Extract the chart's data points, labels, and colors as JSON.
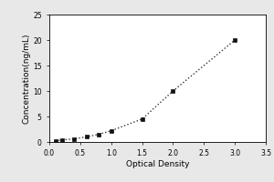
{
  "xlabel": "Optical Density",
  "ylabel": "Concentration(ng/mL)",
  "x_data": [
    0.1,
    0.2,
    0.4,
    0.6,
    0.8,
    1.0,
    1.5,
    2.0,
    3.0
  ],
  "y_data": [
    0.2,
    0.4,
    0.6,
    1.0,
    1.5,
    2.2,
    4.5,
    10.0,
    20.0
  ],
  "xlim": [
    0,
    3.5
  ],
  "ylim": [
    0,
    25
  ],
  "xticks": [
    0,
    0.5,
    1.0,
    1.5,
    2.0,
    2.5,
    3.0,
    3.5
  ],
  "yticks": [
    0,
    5,
    10,
    15,
    20,
    25
  ],
  "line_color": "#333333",
  "marker_color": "#111111",
  "background_color": "#e8e8e8",
  "plot_bg_color": "#ffffff",
  "label_fontsize": 6.5,
  "tick_fontsize": 5.5,
  "figsize": [
    3.0,
    2.0
  ],
  "dpi": 100
}
